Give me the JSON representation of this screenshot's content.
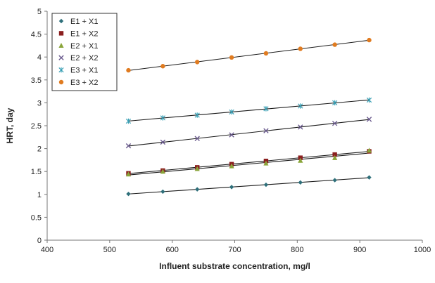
{
  "chart_data": {
    "type": "scatter",
    "title": "",
    "xlabel": "Influent substrate concentration, mg/l",
    "ylabel": "HRT, day",
    "xlim": [
      400,
      1000
    ],
    "ylim": [
      0,
      5
    ],
    "xticks": [
      "400",
      "500",
      "600",
      "700",
      "800",
      "900",
      "1000"
    ],
    "yticks": [
      "0",
      "0.5",
      "1",
      "1.5",
      "2",
      "2.5",
      "3",
      "3.5",
      "4",
      "4.5",
      "5"
    ],
    "x": [
      530,
      585,
      640,
      695,
      750,
      805,
      860,
      915
    ],
    "grid": false,
    "legend_position": "top-left",
    "trendlines": true,
    "series": [
      {
        "name": "E1 + X1",
        "marker": "diamond",
        "color": "#2e6f7a",
        "values": [
          1.01,
          1.06,
          1.11,
          1.16,
          1.21,
          1.26,
          1.31,
          1.37
        ]
      },
      {
        "name": "E1 + X2",
        "marker": "square",
        "color": "#8b1f1f",
        "values": [
          1.46,
          1.52,
          1.59,
          1.66,
          1.73,
          1.8,
          1.87,
          1.94
        ]
      },
      {
        "name": "E2 + X1",
        "marker": "triangle",
        "color": "#8aa53a",
        "values": [
          1.44,
          1.5,
          1.56,
          1.62,
          1.68,
          1.74,
          1.8,
          1.96
        ]
      },
      {
        "name": "E2 + X2",
        "marker": "x",
        "color": "#6a5a8e",
        "values": [
          2.06,
          2.14,
          2.22,
          2.3,
          2.39,
          2.47,
          2.55,
          2.64
        ]
      },
      {
        "name": "E3 + X1",
        "marker": "star",
        "color": "#3aa0b5",
        "values": [
          2.6,
          2.67,
          2.73,
          2.8,
          2.87,
          2.93,
          3.0,
          3.06
        ]
      },
      {
        "name": "E3 + X2",
        "marker": "circle",
        "color": "#e07b20",
        "values": [
          3.71,
          3.8,
          3.89,
          3.99,
          4.08,
          4.18,
          4.27,
          4.37
        ]
      }
    ],
    "trend_color": "#1a1a1a"
  }
}
